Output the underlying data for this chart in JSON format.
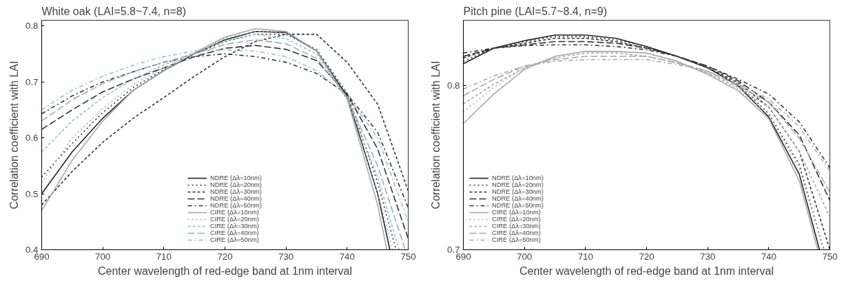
{
  "chart_data": [
    {
      "type": "line",
      "title": "White oak (LAI=5.8~7.4, n=8)",
      "xlabel": "Center wavelength of red-edge band at 1nm interval",
      "ylabel": "Correlation coefficient with LAI",
      "xlim": [
        690,
        750
      ],
      "ylim": [
        0.4,
        0.81
      ],
      "xticks": [
        690,
        700,
        710,
        720,
        730,
        740,
        750
      ],
      "yticks": [
        0.4,
        0.5,
        0.6,
        0.7,
        0.8
      ],
      "grid": false,
      "legend": "bottom",
      "series": [
        {
          "name": "NDRE (Δλ=10nm)",
          "color": "#222222",
          "line_style": "solid",
          "x": [
            690,
            695,
            700,
            705,
            710,
            715,
            720,
            725,
            730,
            735,
            740,
            745,
            747
          ],
          "values": [
            0.5,
            0.575,
            0.635,
            0.685,
            0.72,
            0.75,
            0.775,
            0.79,
            0.788,
            0.755,
            0.675,
            0.5,
            0.4
          ]
        },
        {
          "name": "NDRE (Δλ=20nm)",
          "color": "#333333",
          "line_style": "dotted",
          "x": [
            690,
            695,
            700,
            705,
            710,
            715,
            720,
            725,
            730,
            735,
            740,
            745,
            748
          ],
          "values": [
            0.53,
            0.59,
            0.645,
            0.69,
            0.722,
            0.75,
            0.772,
            0.785,
            0.785,
            0.758,
            0.68,
            0.52,
            0.4
          ]
        },
        {
          "name": "NDRE (Δλ=30nm)",
          "color": "#333333",
          "line_style": "dashed",
          "x": [
            690,
            695,
            700,
            705,
            710,
            715,
            720,
            725,
            730,
            735,
            740,
            745,
            750
          ],
          "values": [
            0.48,
            0.54,
            0.592,
            0.635,
            0.672,
            0.71,
            0.745,
            0.772,
            0.785,
            0.785,
            0.735,
            0.66,
            0.505
          ]
        },
        {
          "name": "NDRE (Δλ=40nm)",
          "color": "#333333",
          "line_style": "longdash",
          "x": [
            690,
            695,
            700,
            705,
            710,
            715,
            720,
            725,
            730,
            735,
            740,
            745,
            750
          ],
          "values": [
            0.615,
            0.65,
            0.682,
            0.705,
            0.725,
            0.745,
            0.76,
            0.765,
            0.758,
            0.738,
            0.678,
            0.58,
            0.42
          ]
        },
        {
          "name": "NDRE (Δλ=50nm)",
          "color": "#333333",
          "line_style": "dashdot",
          "x": [
            690,
            695,
            700,
            705,
            710,
            715,
            720,
            725,
            730,
            735,
            740,
            745,
            750
          ],
          "values": [
            0.643,
            0.675,
            0.7,
            0.718,
            0.735,
            0.745,
            0.75,
            0.745,
            0.735,
            0.715,
            0.678,
            0.61,
            0.475
          ]
        },
        {
          "name": "CIRE (Δλ=10nm)",
          "color": "#a8a8a8",
          "line_style": "solid",
          "x": [
            690,
            695,
            700,
            705,
            710,
            715,
            720,
            725,
            730,
            735,
            740,
            745,
            746.5
          ],
          "values": [
            0.47,
            0.56,
            0.63,
            0.685,
            0.72,
            0.752,
            0.78,
            0.795,
            0.79,
            0.755,
            0.67,
            0.48,
            0.4
          ]
        },
        {
          "name": "CIRE (Δλ=20nm)",
          "color": "#a8a8a8",
          "line_style": "dotted",
          "x": [
            690,
            695,
            700,
            705,
            710,
            715,
            720,
            725,
            730,
            735,
            740,
            745,
            747.5
          ],
          "values": [
            0.52,
            0.6,
            0.652,
            0.695,
            0.725,
            0.75,
            0.778,
            0.79,
            0.787,
            0.757,
            0.668,
            0.5,
            0.4
          ]
        },
        {
          "name": "CIRE (Δλ=30nm)",
          "color": "#8cc4c4",
          "line_style": "dashed",
          "x": [
            690,
            695,
            700,
            705,
            710,
            715,
            720,
            725,
            730,
            735,
            740,
            745,
            748.5
          ],
          "values": [
            0.575,
            0.63,
            0.672,
            0.705,
            0.73,
            0.752,
            0.773,
            0.785,
            0.777,
            0.75,
            0.67,
            0.53,
            0.4
          ]
        },
        {
          "name": "CIRE (Δλ=40nm)",
          "color": "#a8a8a8",
          "line_style": "longdash",
          "x": [
            690,
            695,
            700,
            705,
            710,
            715,
            720,
            725,
            730,
            735,
            740,
            745,
            749.5
          ],
          "values": [
            0.63,
            0.668,
            0.697,
            0.718,
            0.735,
            0.75,
            0.767,
            0.775,
            0.768,
            0.742,
            0.672,
            0.55,
            0.4
          ]
        },
        {
          "name": "CIRE (Δλ=50nm)",
          "color": "#8cc4c4",
          "line_style": "dashdot",
          "x": [
            690,
            695,
            700,
            705,
            710,
            715,
            720,
            725,
            730,
            735,
            740,
            745,
            750
          ],
          "values": [
            0.65,
            0.685,
            0.71,
            0.73,
            0.745,
            0.755,
            0.757,
            0.755,
            0.745,
            0.72,
            0.675,
            0.6,
            0.45
          ]
        }
      ]
    },
    {
      "type": "line",
      "title": "Pitch pine (LAI=5.7~8.4, n=9)",
      "xlabel": "Center wavelength of red-edge band at 1nm interval",
      "ylabel": "Correlation coefficient with LAI",
      "xlim": [
        690,
        750
      ],
      "ylim": [
        0.7,
        0.84
      ],
      "xticks": [
        690,
        700,
        710,
        720,
        730,
        740,
        750
      ],
      "yticks": [
        0.7,
        0.8
      ],
      "grid": false,
      "legend": "bottom left",
      "series": [
        {
          "name": "NDRE (Δλ=10nm)",
          "color": "#222222",
          "line_style": "solid",
          "x": [
            690,
            695,
            700,
            705,
            710,
            715,
            720,
            725,
            730,
            735,
            740,
            745,
            748.3
          ],
          "values": [
            0.8135,
            0.823,
            0.8275,
            0.831,
            0.831,
            0.829,
            0.824,
            0.818,
            0.811,
            0.8,
            0.781,
            0.746,
            0.7
          ]
        },
        {
          "name": "NDRE (Δλ=20nm)",
          "color": "#333333",
          "line_style": "dotted",
          "x": [
            690,
            695,
            700,
            705,
            710,
            715,
            720,
            725,
            730,
            735,
            740,
            745,
            749
          ],
          "values": [
            0.815,
            0.823,
            0.827,
            0.83,
            0.83,
            0.828,
            0.824,
            0.818,
            0.811,
            0.801,
            0.783,
            0.752,
            0.7
          ]
        },
        {
          "name": "NDRE (Δλ=30nm)",
          "color": "#333333",
          "line_style": "dashed",
          "x": [
            690,
            695,
            700,
            705,
            710,
            715,
            720,
            725,
            730,
            735,
            740,
            745,
            750
          ],
          "values": [
            0.817,
            0.823,
            0.826,
            0.829,
            0.829,
            0.827,
            0.823,
            0.818,
            0.811,
            0.802,
            0.787,
            0.76,
            0.7
          ]
        },
        {
          "name": "NDRE (Δλ=40nm)",
          "color": "#333333",
          "line_style": "longdash",
          "x": [
            690,
            695,
            700,
            705,
            710,
            715,
            720,
            725,
            730,
            735,
            740,
            745,
            750
          ],
          "values": [
            0.818,
            0.823,
            0.825,
            0.827,
            0.827,
            0.826,
            0.823,
            0.818,
            0.812,
            0.803,
            0.79,
            0.77,
            0.73
          ]
        },
        {
          "name": "NDRE (Δλ=50nm)",
          "color": "#333333",
          "line_style": "dashdot",
          "x": [
            690,
            695,
            700,
            705,
            710,
            715,
            720,
            725,
            730,
            735,
            740,
            745,
            750
          ],
          "values": [
            0.82,
            0.823,
            0.8245,
            0.825,
            0.825,
            0.824,
            0.822,
            0.818,
            0.812,
            0.804,
            0.795,
            0.778,
            0.75
          ]
        },
        {
          "name": "CIRE (Δλ=10nm)",
          "color": "#a8a8a8",
          "line_style": "solid",
          "x": [
            690,
            695,
            700,
            705,
            710,
            715,
            720,
            725,
            730,
            735,
            740,
            745,
            748
          ],
          "values": [
            0.777,
            0.795,
            0.81,
            0.818,
            0.821,
            0.821,
            0.82,
            0.815,
            0.807,
            0.797,
            0.78,
            0.742,
            0.7
          ]
        },
        {
          "name": "CIRE (Δλ=20nm)",
          "color": "#a8a8a8",
          "line_style": "dotted",
          "x": [
            690,
            695,
            700,
            705,
            710,
            715,
            720,
            725,
            730,
            735,
            740,
            745,
            749
          ],
          "values": [
            0.784,
            0.799,
            0.811,
            0.818,
            0.821,
            0.821,
            0.82,
            0.815,
            0.808,
            0.798,
            0.782,
            0.75,
            0.7
          ]
        },
        {
          "name": "CIRE (Δλ=30nm)",
          "color": "#a8a8a8",
          "line_style": "dashed",
          "x": [
            690,
            695,
            700,
            705,
            710,
            715,
            720,
            725,
            730,
            735,
            740,
            745,
            750
          ],
          "values": [
            0.789,
            0.801,
            0.811,
            0.817,
            0.82,
            0.82,
            0.818,
            0.814,
            0.808,
            0.799,
            0.787,
            0.76,
            0.72
          ]
        },
        {
          "name": "CIRE (Δλ=40nm)",
          "color": "#a8a8a8",
          "line_style": "longdash",
          "x": [
            690,
            695,
            700,
            705,
            710,
            715,
            720,
            725,
            730,
            735,
            740,
            745,
            750
          ],
          "values": [
            0.794,
            0.804,
            0.812,
            0.816,
            0.818,
            0.818,
            0.818,
            0.814,
            0.809,
            0.8,
            0.79,
            0.768,
            0.735
          ]
        },
        {
          "name": "CIRE (Δλ=50nm)",
          "color": "#a8a8a8",
          "line_style": "dashdot",
          "x": [
            690,
            695,
            700,
            705,
            710,
            715,
            720,
            725,
            730,
            735,
            740,
            745,
            750
          ],
          "values": [
            0.798,
            0.806,
            0.812,
            0.815,
            0.816,
            0.816,
            0.816,
            0.813,
            0.809,
            0.801,
            0.792,
            0.775,
            0.748
          ]
        }
      ]
    }
  ]
}
